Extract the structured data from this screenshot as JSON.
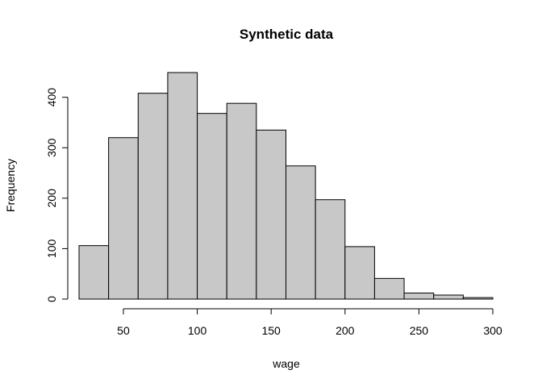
{
  "chart_data": {
    "type": "bar",
    "title": "Synthetic data",
    "xlabel": "wage",
    "ylabel": "Frequency",
    "bin_edges": [
      20,
      40,
      60,
      80,
      100,
      120,
      140,
      160,
      180,
      200,
      220,
      240,
      260,
      280,
      300
    ],
    "values": [
      106,
      320,
      408,
      449,
      368,
      388,
      335,
      264,
      197,
      104,
      41,
      12,
      8,
      3
    ],
    "xlim": [
      20,
      300
    ],
    "ylim": [
      0,
      449
    ],
    "x_ticks": [
      50,
      100,
      150,
      200,
      250,
      300
    ],
    "y_ticks": [
      0,
      100,
      200,
      300,
      400
    ],
    "grid": false,
    "legend": "none",
    "colors": {
      "bar_fill": "#c8c8c8",
      "bar_stroke": "#000000",
      "axis": "#000000"
    }
  }
}
